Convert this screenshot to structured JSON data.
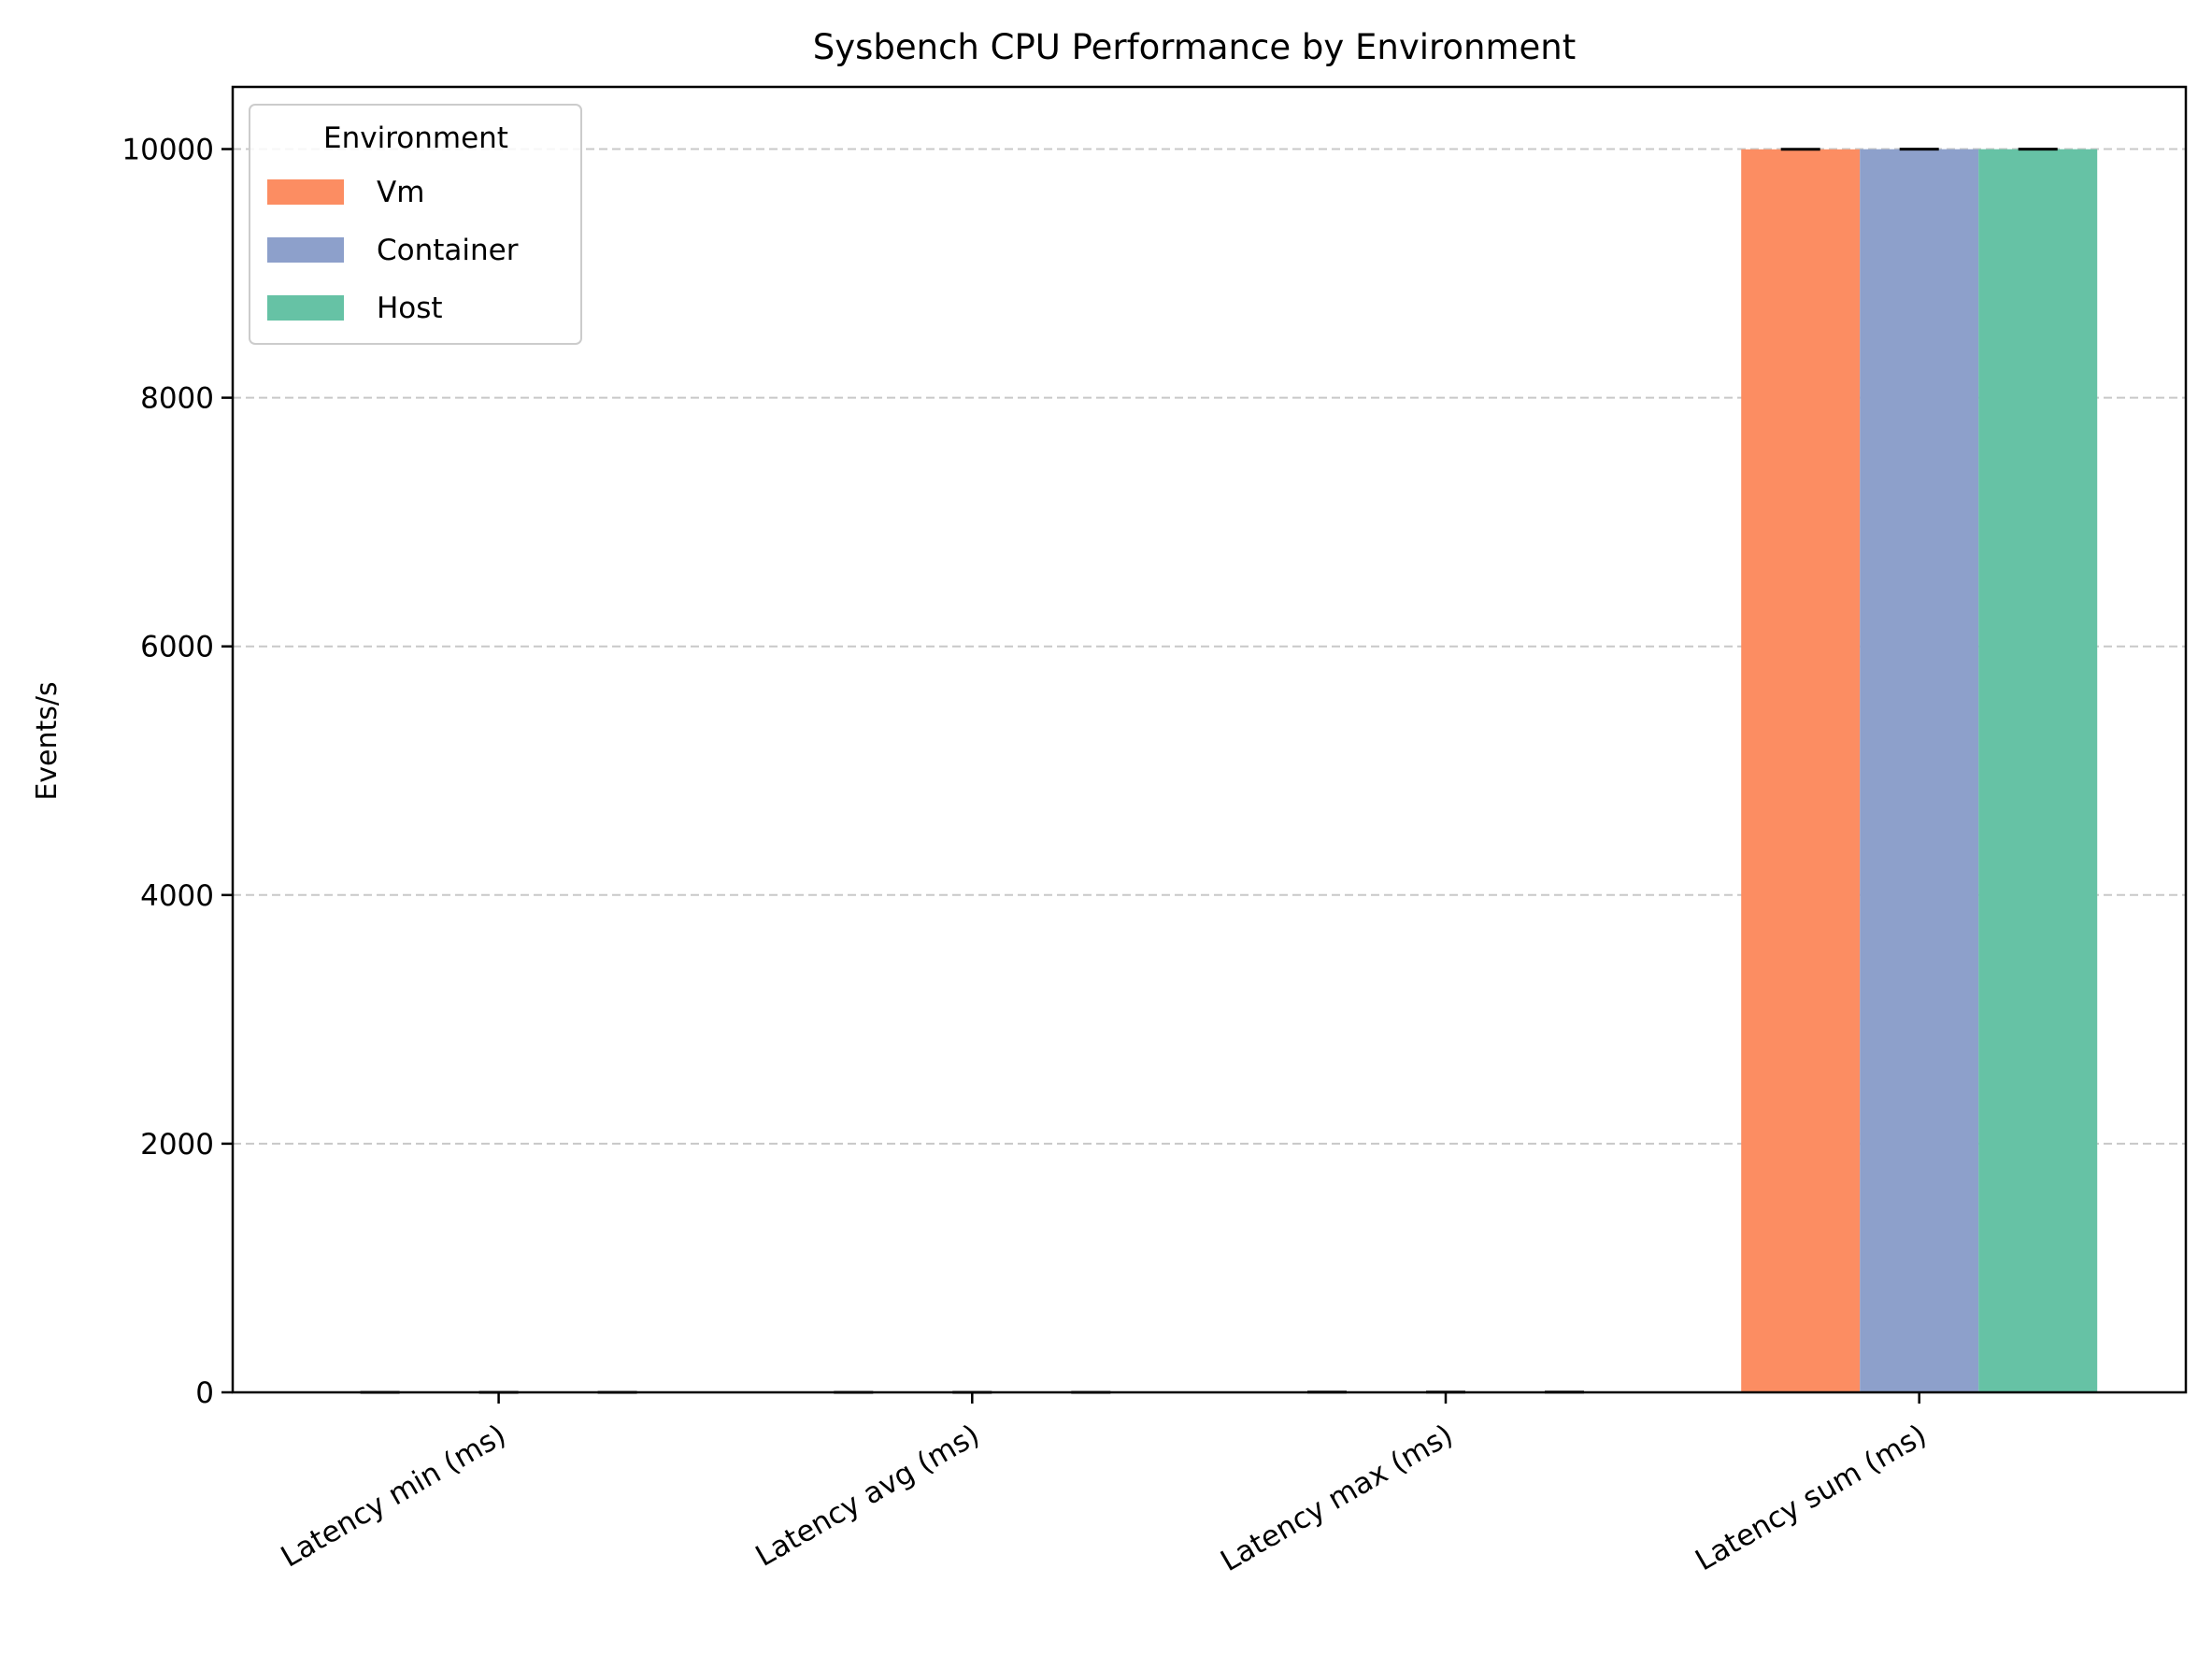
{
  "chart_data": {
    "type": "bar",
    "title": "Sysbench CPU Performance by Environment",
    "xlabel": "",
    "ylabel": "Events/s",
    "categories": [
      "Latency min (ms)",
      "Latency avg (ms)",
      "Latency max (ms)",
      "Latency sum (ms)"
    ],
    "series": [
      {
        "name": "Vm",
        "color": "#fc8d62",
        "values": [
          0.35,
          0.4,
          2.0,
          9998.0
        ]
      },
      {
        "name": "Container",
        "color": "#8da0cb",
        "values": [
          0.35,
          0.4,
          2.0,
          9999.0
        ]
      },
      {
        "name": "Host",
        "color": "#66c2a5",
        "values": [
          0.35,
          0.4,
          2.0,
          9999.0
        ]
      }
    ],
    "ylim": [
      0,
      10500
    ],
    "yticks": [
      0,
      2000,
      4000,
      6000,
      8000,
      10000
    ],
    "ytick_labels": [
      "0",
      "2000",
      "4000",
      "6000",
      "8000",
      "10000"
    ],
    "grid": "y-dashed",
    "error_bars": true,
    "legend": {
      "title": "Environment",
      "placement": "top-left"
    }
  }
}
